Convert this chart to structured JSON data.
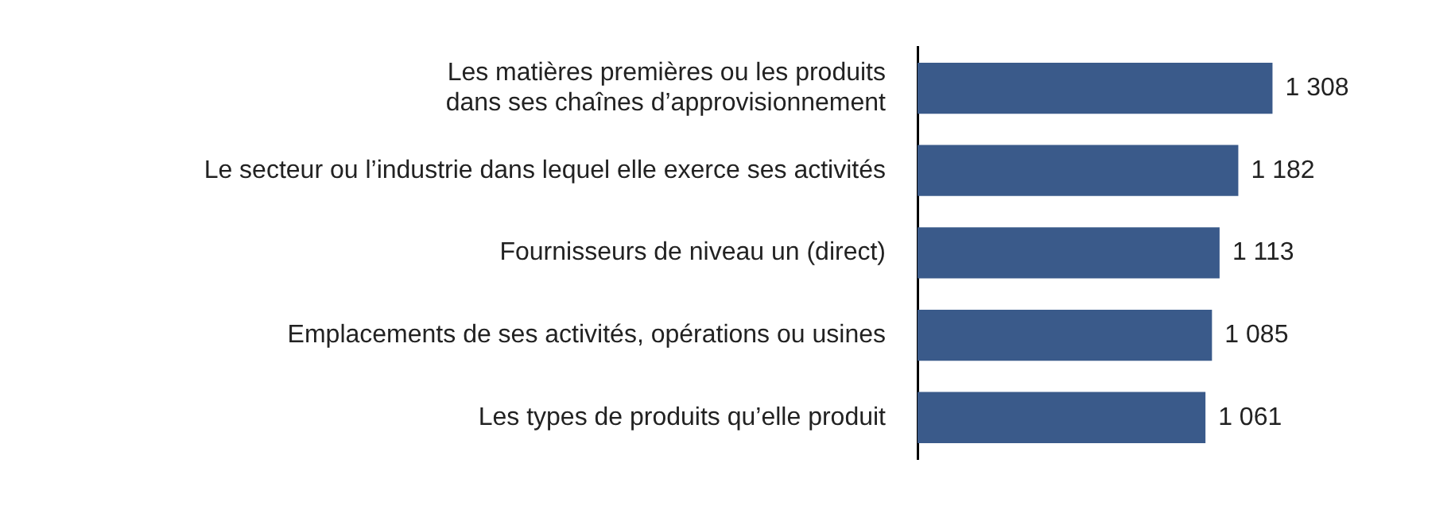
{
  "chart_data": {
    "type": "bar",
    "orientation": "horizontal",
    "tick_labels": "y",
    "categories": [
      "Les matières premières ou les produits dans ses chaînes d’approvisionnement",
      "Le secteur ou l’industrie dans lequel elle exerce ses activités",
      "Fournisseurs de niveau un (direct)",
      "Emplacements de ses activités, opérations ou usines",
      "Les types de produits qu’elle produit"
    ],
    "values": [
      1308,
      1182,
      1113,
      1085,
      1061
    ],
    "value_labels": [
      "1 308",
      "1 182",
      "1 113",
      "1 085",
      "1 061"
    ],
    "color": "#3a5a8a",
    "legend": false
  }
}
